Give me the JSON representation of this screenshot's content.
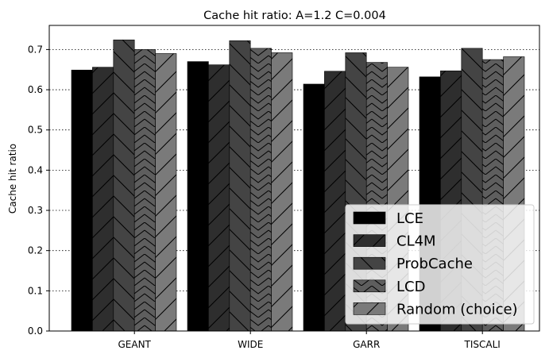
{
  "chart_data": {
    "type": "bar",
    "title": "Cache hit ratio: A=1.2 C=0.004",
    "xlabel": "",
    "ylabel": "Cache hit ratio",
    "categories": [
      "GEANT",
      "WIDE",
      "GARR",
      "TISCALI"
    ],
    "ylim": [
      0,
      0.76
    ],
    "yticks": [
      0.0,
      0.1,
      0.2,
      0.3,
      0.4,
      0.5,
      0.6,
      0.7
    ],
    "ytick_labels": [
      "0.0",
      "0.1",
      "0.2",
      "0.3",
      "0.4",
      "0.5",
      "0.6",
      "0.7"
    ],
    "grid": "horizontal dotted",
    "legend_position": "lower-right",
    "series": [
      {
        "name": "LCE",
        "values": [
          0.649,
          0.67,
          0.614,
          0.632
        ],
        "color": "#000000",
        "hatch": "none"
      },
      {
        "name": "CL4M",
        "values": [
          0.656,
          0.662,
          0.646,
          0.647
        ],
        "color": "#2e2e2e",
        "hatch": "forward-slash"
      },
      {
        "name": "ProbCache",
        "values": [
          0.724,
          0.722,
          0.692,
          0.703
        ],
        "color": "#444444",
        "hatch": "back-slash"
      },
      {
        "name": "LCD",
        "values": [
          0.7,
          0.703,
          0.668,
          0.675
        ],
        "color": "#5e5e5e",
        "hatch": "chevron"
      },
      {
        "name": "Random (choice)",
        "values": [
          0.69,
          0.692,
          0.656,
          0.682
        ],
        "color": "#7a7a7a",
        "hatch": "forward-slash"
      }
    ]
  }
}
